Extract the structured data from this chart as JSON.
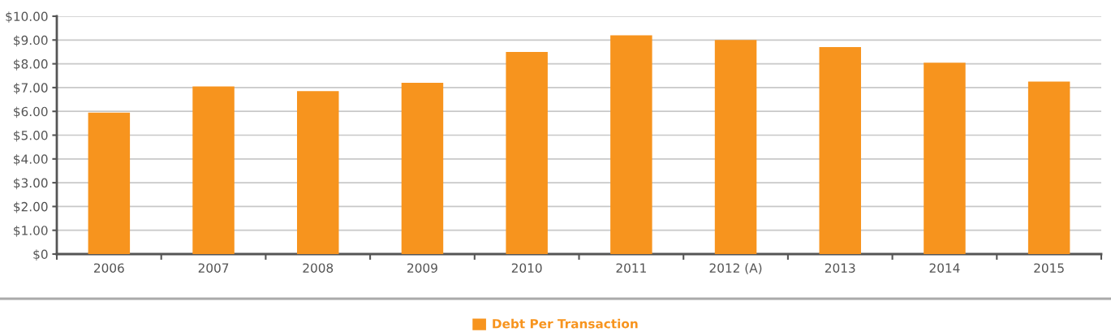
{
  "chart_data": {
    "type": "bar",
    "categories": [
      "2006",
      "2007",
      "2008",
      "2009",
      "2010",
      "2011",
      "2012 (A)",
      "2013",
      "2014",
      "2015"
    ],
    "series": [
      {
        "name": "Debt Per Transaction",
        "color": "#f7941e",
        "values": [
          5.95,
          7.05,
          6.85,
          7.2,
          8.5,
          9.2,
          9.0,
          8.7,
          8.05,
          7.25
        ]
      }
    ],
    "ylim": [
      0,
      10
    ],
    "yticks": [
      {
        "value": 0,
        "label": "$0"
      },
      {
        "value": 1,
        "label": "$1.00"
      },
      {
        "value": 2,
        "label": "$2.00"
      },
      {
        "value": 3,
        "label": "$3.00"
      },
      {
        "value": 4,
        "label": "$4.00"
      },
      {
        "value": 5,
        "label": "$5.00"
      },
      {
        "value": 6,
        "label": "$6.00"
      },
      {
        "value": 7,
        "label": "$7.00"
      },
      {
        "value": 8,
        "label": "$8.00"
      },
      {
        "value": 9,
        "label": "$9.00"
      },
      {
        "value": 10,
        "label": "$10.00"
      }
    ],
    "grid": "y",
    "legend": "bottom"
  }
}
